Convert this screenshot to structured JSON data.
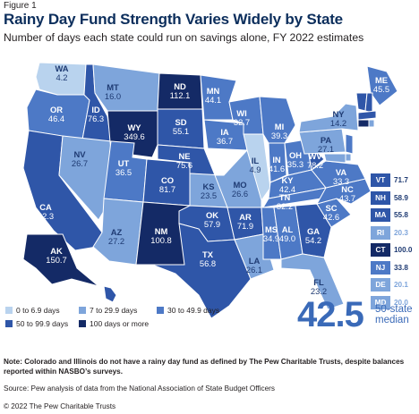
{
  "figure_label": "Figure 1",
  "title": "Rainy Day Fund Strength Varies Widely by State",
  "subtitle": "Number of days each state could run on savings alone, FY 2022 estimates",
  "colors": {
    "c1": "#b9d3ee",
    "c2": "#7ea5db",
    "c3": "#4d79c6",
    "c4": "#2f56a8",
    "c5": "#142a66",
    "outline": "#ffffff",
    "title": "#0c2e5c",
    "median": "#3a6ab8"
  },
  "legend": [
    {
      "label": "0 to 6.9 days",
      "color": "c1"
    },
    {
      "label": "7 to 29.9 days",
      "color": "c2"
    },
    {
      "label": "30 to 49.9 days",
      "color": "c3"
    },
    {
      "label": "50 to 99.9 days",
      "color": "c4"
    },
    {
      "label": "100 days or more",
      "color": "c5"
    }
  ],
  "states": [
    {
      "code": "WA",
      "value": "4.2",
      "color": "c1"
    },
    {
      "code": "OR",
      "value": "46.4",
      "color": "c3"
    },
    {
      "code": "CA",
      "value": "82.3",
      "color": "c4"
    },
    {
      "code": "ID",
      "value": "76.3",
      "color": "c4"
    },
    {
      "code": "NV",
      "value": "26.7",
      "color": "c2"
    },
    {
      "code": "MT",
      "value": "16.0",
      "color": "c2"
    },
    {
      "code": "WY",
      "value": "349.6",
      "color": "c5"
    },
    {
      "code": "UT",
      "value": "36.5",
      "color": "c3"
    },
    {
      "code": "AZ",
      "value": "27.2",
      "color": "c2"
    },
    {
      "code": "CO",
      "value": "81.7",
      "color": "c4"
    },
    {
      "code": "NM",
      "value": "100.8",
      "color": "c5"
    },
    {
      "code": "ND",
      "value": "112.1",
      "color": "c5"
    },
    {
      "code": "SD",
      "value": "55.1",
      "color": "c4"
    },
    {
      "code": "NE",
      "value": "75.6",
      "color": "c4"
    },
    {
      "code": "KS",
      "value": "23.5",
      "color": "c2"
    },
    {
      "code": "OK",
      "value": "57.9",
      "color": "c4"
    },
    {
      "code": "TX",
      "value": "56.8",
      "color": "c4"
    },
    {
      "code": "MN",
      "value": "44.1",
      "color": "c3"
    },
    {
      "code": "IA",
      "value": "36.7",
      "color": "c3"
    },
    {
      "code": "MO",
      "value": "26.6",
      "color": "c2"
    },
    {
      "code": "AR",
      "value": "71.9",
      "color": "c4"
    },
    {
      "code": "LA",
      "value": "26.1",
      "color": "c2"
    },
    {
      "code": "WI",
      "value": "32.7",
      "color": "c3"
    },
    {
      "code": "IL",
      "value": "4.9",
      "color": "c1"
    },
    {
      "code": "MI",
      "value": "39.3",
      "color": "c3"
    },
    {
      "code": "IN",
      "value": "41.6",
      "color": "c3"
    },
    {
      "code": "OH",
      "value": "35.3",
      "color": "c3"
    },
    {
      "code": "KY",
      "value": "42.4",
      "color": "c3"
    },
    {
      "code": "TN",
      "value": "32.2",
      "color": "c3"
    },
    {
      "code": "MS",
      "value": "34.9",
      "color": "c3"
    },
    {
      "code": "AL",
      "value": "49.0",
      "color": "c3"
    },
    {
      "code": "GA",
      "value": "54.2",
      "color": "c4"
    },
    {
      "code": "FL",
      "value": "23.2",
      "color": "c2"
    },
    {
      "code": "SC",
      "value": "42.6",
      "color": "c3"
    },
    {
      "code": "NC",
      "value": "43.7",
      "color": "c3"
    },
    {
      "code": "VA",
      "value": "33.3",
      "color": "c3"
    },
    {
      "code": "WV",
      "value": "78.2",
      "color": "c4"
    },
    {
      "code": "PA",
      "value": "27.1",
      "color": "c2"
    },
    {
      "code": "NY",
      "value": "14.2",
      "color": "c2"
    },
    {
      "code": "ME",
      "value": "45.5",
      "color": "c3"
    },
    {
      "code": "AK",
      "value": "150.7",
      "color": "c5"
    },
    {
      "code": "HI",
      "value": "61.9",
      "color": "c4"
    }
  ],
  "northeast": [
    {
      "code": "VT",
      "value": "71.7",
      "color": "c4"
    },
    {
      "code": "NH",
      "value": "58.9",
      "color": "c4"
    },
    {
      "code": "MA",
      "value": "55.8",
      "color": "c4"
    },
    {
      "code": "RI",
      "value": "20.3",
      "color": "c2"
    },
    {
      "code": "CT",
      "value": "100.0",
      "color": "c5"
    },
    {
      "code": "NJ",
      "value": "33.8",
      "color": "c3"
    },
    {
      "code": "DE",
      "value": "20.1",
      "color": "c2"
    },
    {
      "code": "MD",
      "value": "20.0",
      "color": "c2"
    }
  ],
  "median": {
    "value": "42.5",
    "label_line1": "50-state",
    "label_line2": "median"
  },
  "note": "Note: Colorado and Illinois do not have a rainy day fund as defined by The Pew Charitable Trusts, despite balances reported within NASBO’s surveys.",
  "source": "Source: Pew analysis of data from the National Association of State Budget Officers",
  "copyright": "© 2022 The Pew Charitable Trusts"
}
